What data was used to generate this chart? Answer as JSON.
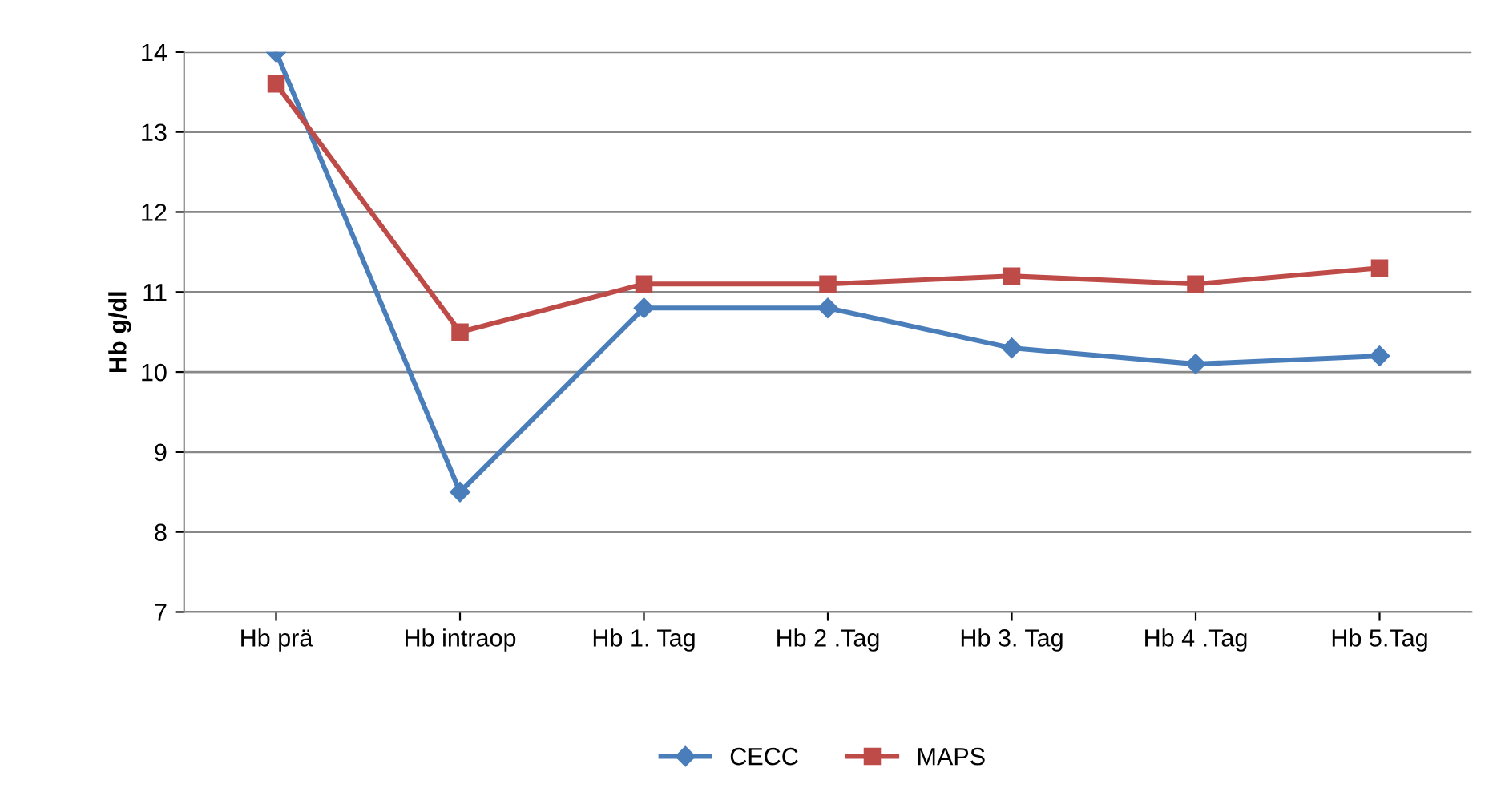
{
  "chart_data": {
    "type": "line",
    "ylabel": "Hb g/dl",
    "categories": [
      "Hb prä",
      "Hb intraop",
      "Hb 1. Tag",
      "Hb 2 .Tag",
      "Hb 3. Tag",
      "Hb 4 .Tag",
      "Hb 5.Tag"
    ],
    "series": [
      {
        "name": "CECC",
        "color": "#4a7ebb",
        "marker": "diamond",
        "values": [
          14,
          8.5,
          10.8,
          10.8,
          10.3,
          10.1,
          10.2
        ]
      },
      {
        "name": "MAPS",
        "color": "#be4b48",
        "marker": "square",
        "values": [
          13.6,
          10.5,
          11.1,
          11.1,
          11.2,
          11.1,
          11.3
        ]
      }
    ],
    "ylim": [
      7,
      14
    ],
    "yticks": [
      7,
      8,
      9,
      10,
      11,
      12,
      13,
      14
    ],
    "grid": "y",
    "legend": "bottom",
    "line_style": "solid"
  }
}
